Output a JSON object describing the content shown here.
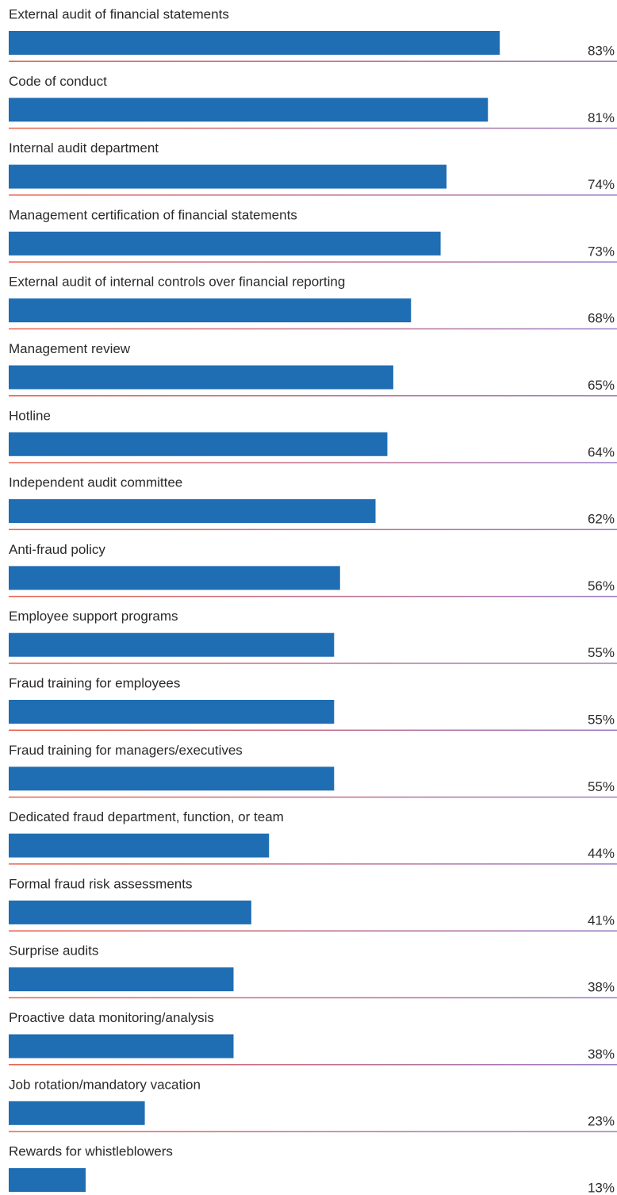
{
  "chart_data": {
    "type": "hbar",
    "categories": [
      "External audit of financial statements",
      "Code of conduct",
      "Internal audit department",
      "Management certification of financial statements",
      "External audit of internal controls over financial reporting",
      "Management review",
      "Hotline",
      "Independent audit committee",
      "Anti-fraud policy",
      "Employee support programs",
      "Fraud training for employees",
      "Fraud training for managers/executives",
      "Dedicated fraud department, function, or team",
      "Formal fraud risk assessments",
      "Surprise audits",
      "Proactive data monitoring/analysis",
      "Job rotation/mandatory vacation",
      "Rewards for whistleblowers"
    ],
    "values": [
      83,
      81,
      74,
      73,
      68,
      65,
      64,
      62,
      56,
      55,
      55,
      55,
      44,
      41,
      38,
      38,
      23,
      13
    ],
    "value_labels": [
      "83%",
      "81%",
      "74%",
      "73%",
      "68%",
      "65%",
      "64%",
      "62%",
      "56%",
      "55%",
      "55%",
      "55%",
      "44%",
      "41%",
      "38%",
      "38%",
      "23%",
      "13%"
    ],
    "color": "#1f6db3",
    "xlim": [
      0,
      100
    ]
  }
}
